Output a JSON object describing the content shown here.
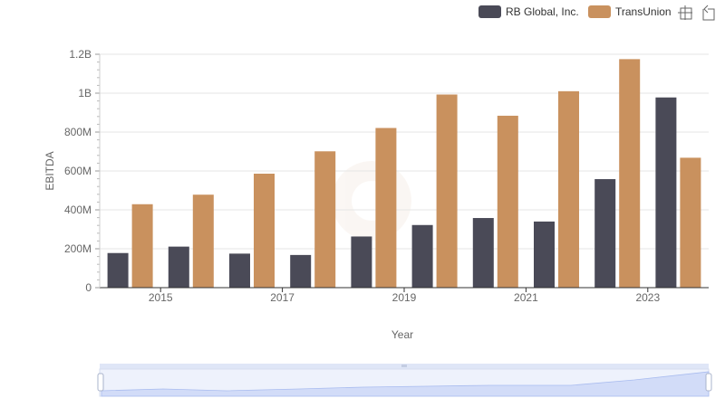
{
  "chart_data": {
    "type": "bar",
    "categories": [
      "2014",
      "2015",
      "2016",
      "2017",
      "2018",
      "2019",
      "2020",
      "2021",
      "2022",
      "2023"
    ],
    "series": [
      {
        "name": "RB Global, Inc.",
        "color": "#4a4a57",
        "values": [
          178000000,
          211000000,
          175000000,
          168000000,
          263000000,
          322000000,
          358000000,
          340000000,
          558000000,
          978000000
        ]
      },
      {
        "name": "TransUnion",
        "color": "#c9915e",
        "values": [
          429000000,
          478000000,
          586000000,
          701000000,
          821000000,
          993000000,
          884000000,
          1010000000,
          1175000000,
          668000000
        ]
      }
    ],
    "x_tick_labels": [
      "2015",
      "2017",
      "2019",
      "2021",
      "2023"
    ],
    "y_tick_labels": [
      "0",
      "200M",
      "400M",
      "600M",
      "800M",
      "1B",
      "1.2B"
    ],
    "ylim": [
      0,
      1200000000
    ],
    "xlabel": "Year",
    "ylabel": "EBITDA",
    "legend_position": "top-right",
    "grid": true
  },
  "toolbar": {
    "zoom_icon": "zoom-icon",
    "restore_icon": "restore-icon"
  }
}
